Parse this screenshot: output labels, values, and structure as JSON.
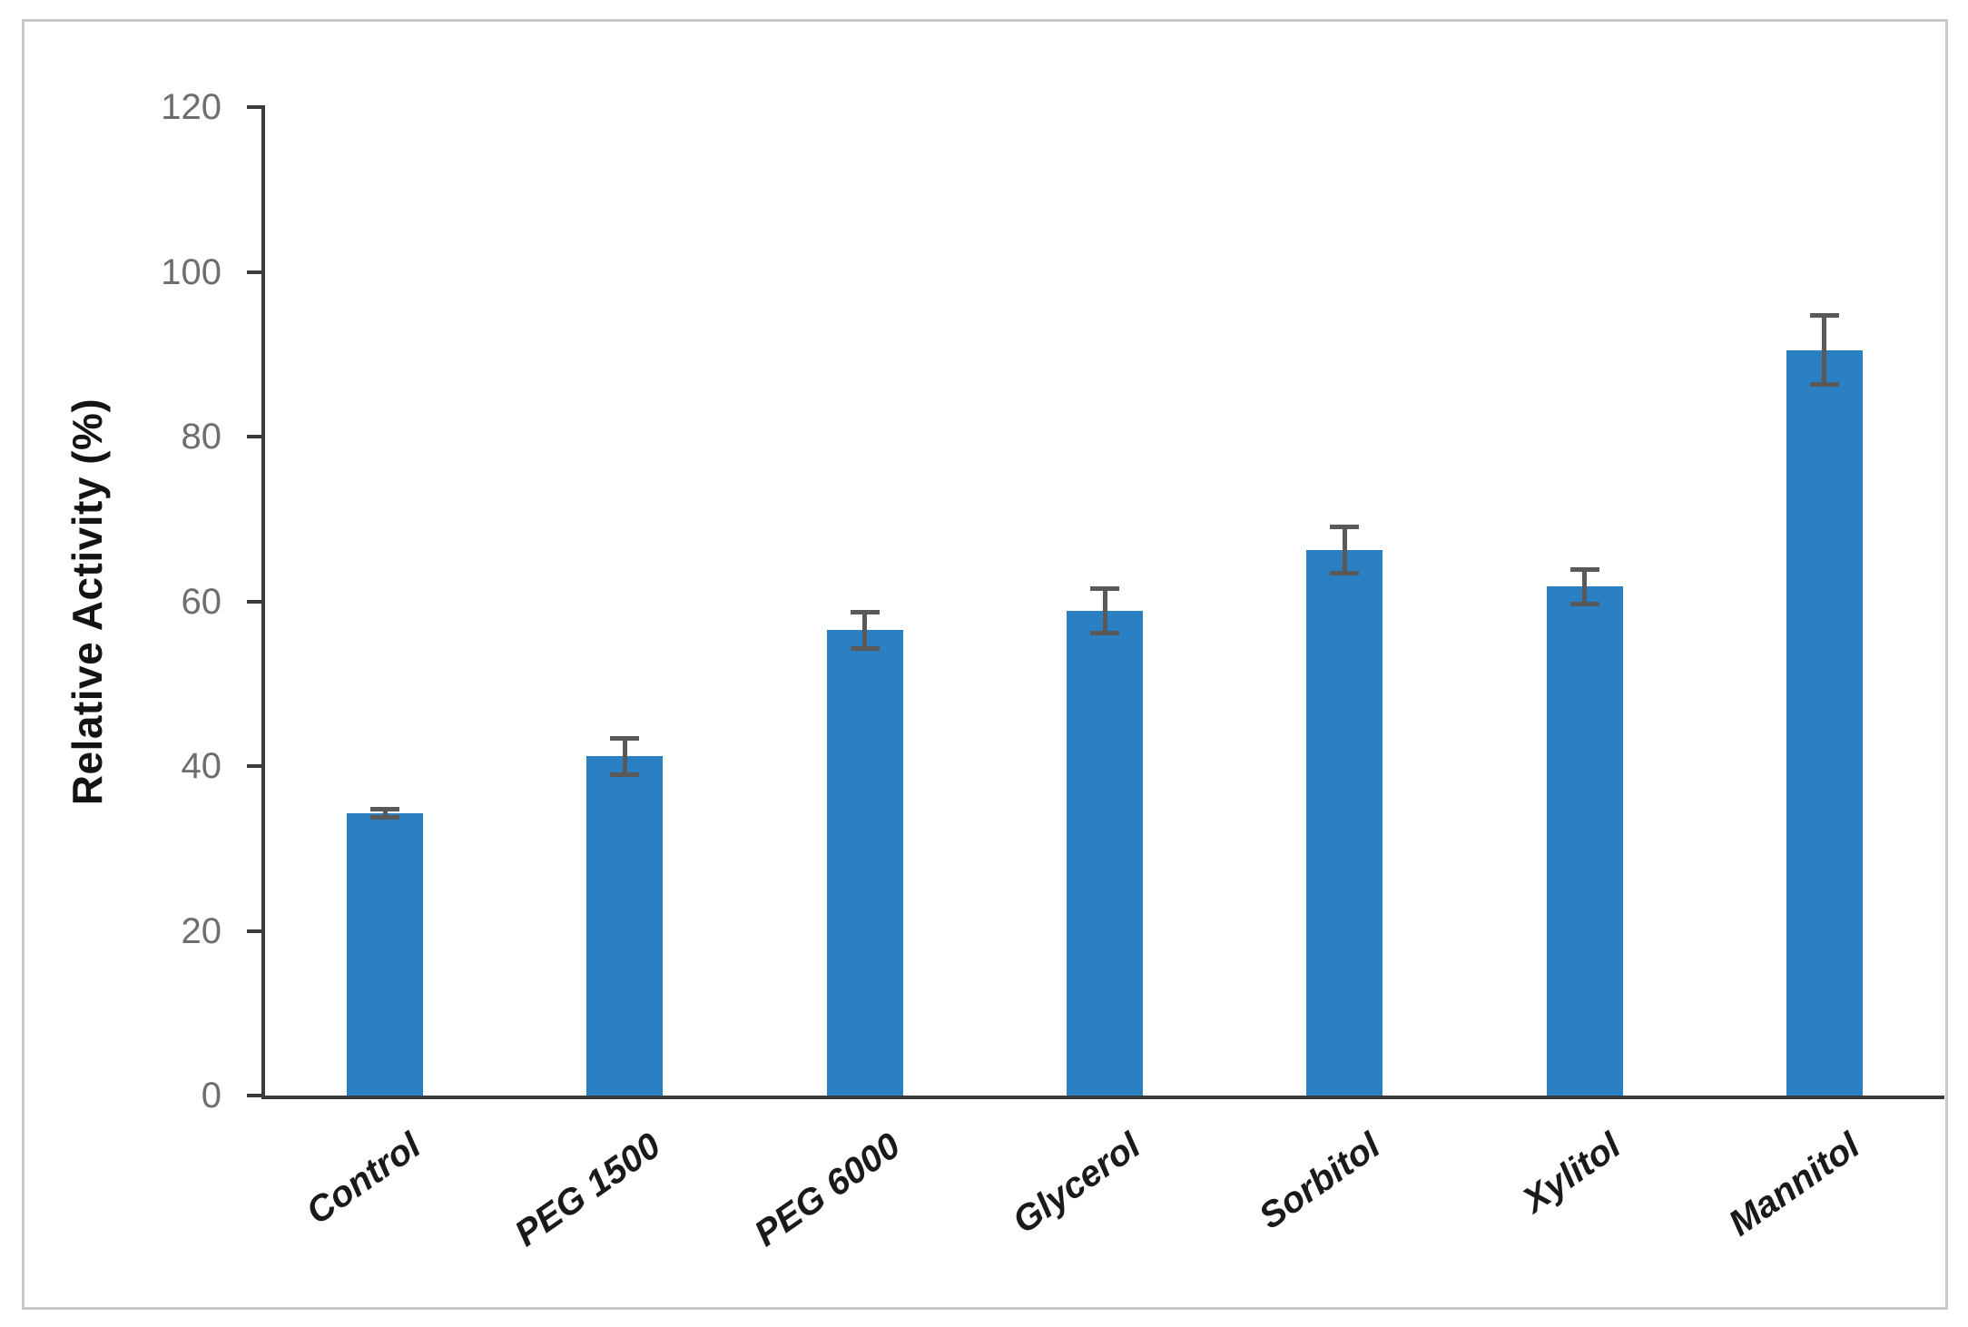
{
  "chart_data": {
    "type": "bar",
    "title": "",
    "xlabel": "",
    "ylabel": "Relative Activity (%)",
    "ylim": [
      0,
      120
    ],
    "ytick_step": 20,
    "yticks": [
      0,
      20,
      40,
      60,
      80,
      100,
      120
    ],
    "categories": [
      "Control",
      "PEG 1500",
      "PEG 6000",
      "Glycerol",
      "Sorbitol",
      "Xylitol",
      "Mannitol"
    ],
    "series": [
      {
        "name": "Relative Activity (%)",
        "values": [
          34.3,
          41.2,
          56.5,
          58.8,
          66.2,
          61.8,
          90.5
        ],
        "errors": [
          0.5,
          2.2,
          2.2,
          2.7,
          2.8,
          2.1,
          4.2
        ]
      }
    ],
    "grid": false,
    "legend_position": "none",
    "bar_color": "#2a80c2",
    "error_bar_color": "#595959",
    "axis_color": "#3b3b3b",
    "tick_label_color": "#6e6e6e",
    "category_label_color": "#1a1a1a",
    "frame_border_color": "#c9c9c9"
  }
}
